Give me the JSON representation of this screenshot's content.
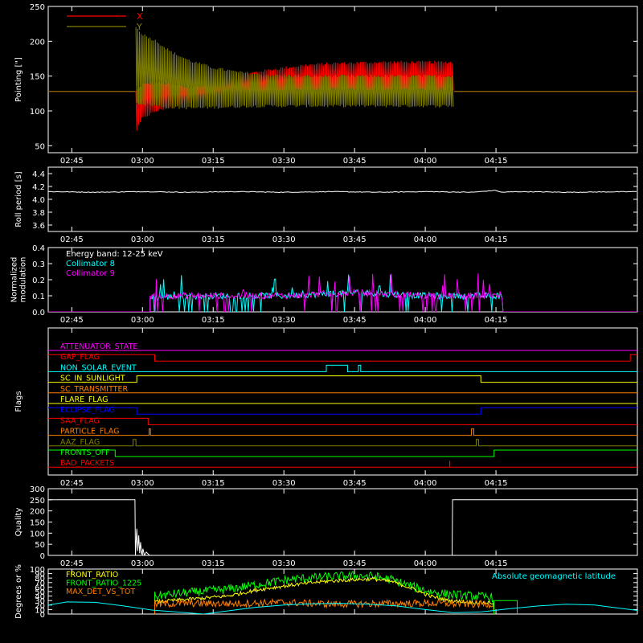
{
  "figure": {
    "background": "#000000",
    "foreground": "#ffffff"
  },
  "time_axis": {
    "range_min": [
      160,
      285
    ],
    "ticks": [
      "02:45",
      "03:00",
      "03:15",
      "03:30",
      "03:45",
      "04:00",
      "04:15"
    ],
    "tick_min": [
      165,
      180,
      195,
      210,
      225,
      240,
      255
    ]
  },
  "chart_data": [
    {
      "id": "pointing",
      "type": "line",
      "ylabel": "Pointing [\"]",
      "ylim": [
        40,
        250
      ],
      "yticks": [
        50,
        100,
        150,
        200,
        250
      ],
      "legend": "top-left",
      "series": [
        {
          "name": "X",
          "color": "#ff0000",
          "x": [
            160,
            178.5,
            178.6,
            180,
            183,
            186,
            190,
            195,
            200,
            205,
            210,
            215,
            220,
            225,
            230,
            235,
            240,
            244,
            246,
            246.1,
            285
          ],
          "y_low": [
            128,
            128,
            70,
            90,
            100,
            106,
            113,
            118,
            125,
            128,
            130,
            131,
            131,
            131,
            131,
            131,
            131,
            131,
            131,
            128,
            128
          ],
          "y_high": [
            128,
            128,
            128,
            138,
            140,
            138,
            133,
            138,
            150,
            157,
            162,
            166,
            168,
            169,
            170,
            170,
            170,
            170,
            170,
            128,
            128
          ]
        },
        {
          "name": "Y",
          "color": "#808000",
          "x": [
            160,
            178.5,
            178.6,
            180,
            183,
            186,
            190,
            195,
            200,
            205,
            210,
            215,
            220,
            225,
            230,
            235,
            240,
            244,
            246,
            246.1,
            285
          ],
          "y_low": [
            128,
            128,
            112,
            110,
            107,
            105,
            104,
            105,
            106,
            107,
            107,
            107,
            107,
            107,
            107,
            107,
            107,
            107,
            107,
            128,
            128
          ],
          "y_high": [
            128,
            128,
            220,
            210,
            200,
            185,
            172,
            162,
            156,
            152,
            151,
            150,
            150,
            150,
            150,
            150,
            150,
            150,
            150,
            128,
            128
          ]
        }
      ]
    },
    {
      "id": "roll_period",
      "type": "line",
      "ylabel": "Roll period [s]",
      "ylim": [
        3.5,
        4.5
      ],
      "yticks": [
        3.6,
        3.8,
        4.0,
        4.2,
        4.4
      ],
      "series": [
        {
          "name": "",
          "color": "#ffffff",
          "x": [
            160,
            170,
            180,
            190,
            200,
            210,
            220,
            230,
            240,
            250,
            255,
            256,
            260,
            270,
            285
          ],
          "y": [
            4.12,
            4.11,
            4.12,
            4.11,
            4.12,
            4.11,
            4.12,
            4.11,
            4.12,
            4.11,
            4.14,
            4.11,
            4.12,
            4.11,
            4.12
          ]
        }
      ]
    },
    {
      "id": "modulation",
      "type": "line",
      "ylabel": "Normalized modulation",
      "ylim": [
        0,
        0.4
      ],
      "yticks": [
        0.0,
        0.1,
        0.2,
        0.3,
        0.4
      ],
      "annotation": "Energy band: 12-25 keV",
      "legend": "top-left",
      "series": [
        {
          "name": "Collimator 8",
          "color": "#00ffff",
          "x": [
            160,
            181.5,
            181.6,
            195,
            210,
            225,
            240,
            256.5,
            256.6,
            285
          ],
          "y": [
            0.0,
            0.0,
            0.09,
            0.1,
            0.1,
            0.12,
            0.1,
            0.1,
            0.0,
            0.0
          ]
        },
        {
          "name": "Collimator 9",
          "color": "#ff00ff",
          "x": [
            160,
            181.5,
            181.6,
            195,
            210,
            225,
            240,
            256.5,
            256.6,
            285
          ],
          "y": [
            0.0,
            0.0,
            0.1,
            0.1,
            0.1,
            0.12,
            0.1,
            0.1,
            0.0,
            0.0
          ]
        }
      ]
    },
    {
      "id": "flags",
      "type": "line",
      "ylabel": "Flags",
      "flags": [
        {
          "name": "ATTENUATOR_STATE",
          "color": "#ff00ff",
          "segments": [
            [
              160,
              285,
              0
            ]
          ]
        },
        {
          "name": "GAP_FLAG",
          "color": "#ff0000",
          "segments": [
            [
              160,
              182.6,
              1
            ],
            [
              182.6,
              283.5,
              0
            ],
            [
              283.5,
              285,
              1
            ]
          ]
        },
        {
          "name": "NON_SOLAR_EVENT",
          "color": "#00ffff",
          "segments": [
            [
              160,
              219,
              0
            ],
            [
              219,
              223.5,
              1
            ],
            [
              223.5,
              225.8,
              0
            ],
            [
              225.8,
              226.3,
              1
            ],
            [
              226.3,
              285,
              0
            ]
          ]
        },
        {
          "name": "SC_IN_SUNLIGHT",
          "color": "#ffff00",
          "segments": [
            [
              160,
              178.8,
              0
            ],
            [
              178.8,
              251.8,
              1
            ],
            [
              251.8,
              285,
              0
            ]
          ]
        },
        {
          "name": "SC_TRANSMITTER",
          "color": "#ff8000",
          "segments": [
            [
              160,
              285,
              0
            ]
          ]
        },
        {
          "name": "FLARE_FLAG",
          "color": "#ffff00",
          "segments": [
            [
              160,
              285,
              0
            ]
          ]
        },
        {
          "name": "ECLIPSE_FLAG",
          "color": "#0000ff",
          "segments": [
            [
              160,
              178.8,
              1
            ],
            [
              178.8,
              251.8,
              0
            ],
            [
              251.8,
              285,
              1
            ]
          ]
        },
        {
          "name": "SAA_FLAG",
          "color": "#ff0000",
          "segments": [
            [
              160,
              181.2,
              1
            ],
            [
              181.2,
              285,
              0
            ]
          ]
        },
        {
          "name": "PARTICLE_FLAG",
          "color": "#ff8000",
          "segments": [
            [
              160,
              181.4,
              0
            ],
            [
              181.4,
              181.7,
              1
            ],
            [
              181.7,
              249.8,
              0
            ],
            [
              249.8,
              250.3,
              1
            ],
            [
              250.3,
              285,
              0
            ]
          ]
        },
        {
          "name": "AAZ_FLAG",
          "color": "#808000",
          "segments": [
            [
              160,
              178.0,
              0
            ],
            [
              178.0,
              178.6,
              1
            ],
            [
              178.6,
              250.8,
              0
            ],
            [
              250.8,
              251.3,
              1
            ],
            [
              251.3,
              285,
              0
            ]
          ]
        },
        {
          "name": "FRONTS_OFF",
          "color": "#00ff00",
          "segments": [
            [
              160,
              174.2,
              1
            ],
            [
              174.2,
              254.6,
              0
            ],
            [
              254.6,
              285,
              1
            ]
          ]
        },
        {
          "name": "BAD_PACKETS",
          "color": "#ff0000",
          "segments": [
            [
              160,
              285,
              0
            ]
          ],
          "spikes": [
            245.2
          ]
        }
      ]
    },
    {
      "id": "quality",
      "type": "line",
      "ylabel": "Quality",
      "ylim": [
        0,
        300
      ],
      "yticks": [
        0,
        50,
        100,
        150,
        200,
        250,
        300
      ],
      "series": [
        {
          "name": "",
          "color": "#ffffff",
          "x": [
            160,
            178.4,
            178.5,
            178.8,
            179.0,
            179.2,
            179.4,
            179.6,
            179.8,
            180.1,
            180.4,
            180.8,
            181.5,
            245.7,
            245.8,
            285
          ],
          "y": [
            250,
            250,
            0,
            120,
            20,
            90,
            10,
            60,
            5,
            30,
            0,
            15,
            0,
            0,
            250,
            250
          ]
        }
      ]
    },
    {
      "id": "ratios",
      "type": "line",
      "ylabel": "Degrees or %",
      "ylim": [
        0,
        100
      ],
      "yticks": [
        0,
        10,
        20,
        30,
        40,
        50,
        60,
        70,
        80,
        90,
        100
      ],
      "legend": "top-left",
      "annotation_right": "Absolute geomagnetic latitude",
      "annotation_right_color": "#00ffff",
      "series": [
        {
          "name": "FRONT_RATIO",
          "color": "#ffff00",
          "x": [
            182.6,
            190,
            198,
            205,
            212,
            218,
            224,
            229,
            233,
            237,
            241,
            245,
            250,
            254.6
          ],
          "y": [
            27,
            33,
            40,
            55,
            65,
            72,
            76,
            78,
            72,
            58,
            40,
            30,
            26,
            25
          ]
        },
        {
          "name": "FRONT_RATIO_1225",
          "color": "#00ff00",
          "x": [
            182.6,
            190,
            198,
            205,
            212,
            218,
            224,
            229,
            233,
            237,
            241,
            245,
            250,
            254.6
          ],
          "y": [
            40,
            48,
            55,
            67,
            78,
            82,
            85,
            84,
            76,
            62,
            50,
            44,
            40,
            37
          ]
        },
        {
          "name": "MAX_DET_VS_TOT",
          "color": "#ff8000",
          "x": [
            182.6,
            190,
            200,
            210,
            220,
            230,
            240,
            250,
            254.6
          ],
          "y": [
            22,
            24,
            23,
            26,
            22,
            23,
            24,
            22,
            22
          ]
        },
        {
          "name": "Absolute geomagnetic latitude",
          "color": "#00ffff",
          "x": [
            160,
            164,
            170,
            176,
            182,
            188,
            193,
            198,
            204,
            210,
            216,
            222,
            228,
            234,
            240,
            246,
            252,
            258,
            264,
            270,
            276,
            282,
            285
          ],
          "y": [
            20,
            27,
            26,
            18,
            9,
            4,
            0,
            7,
            15,
            20,
            23,
            24,
            22,
            18,
            10,
            3,
            5,
            12,
            18,
            22,
            20,
            12,
            8
          ]
        }
      ]
    }
  ]
}
